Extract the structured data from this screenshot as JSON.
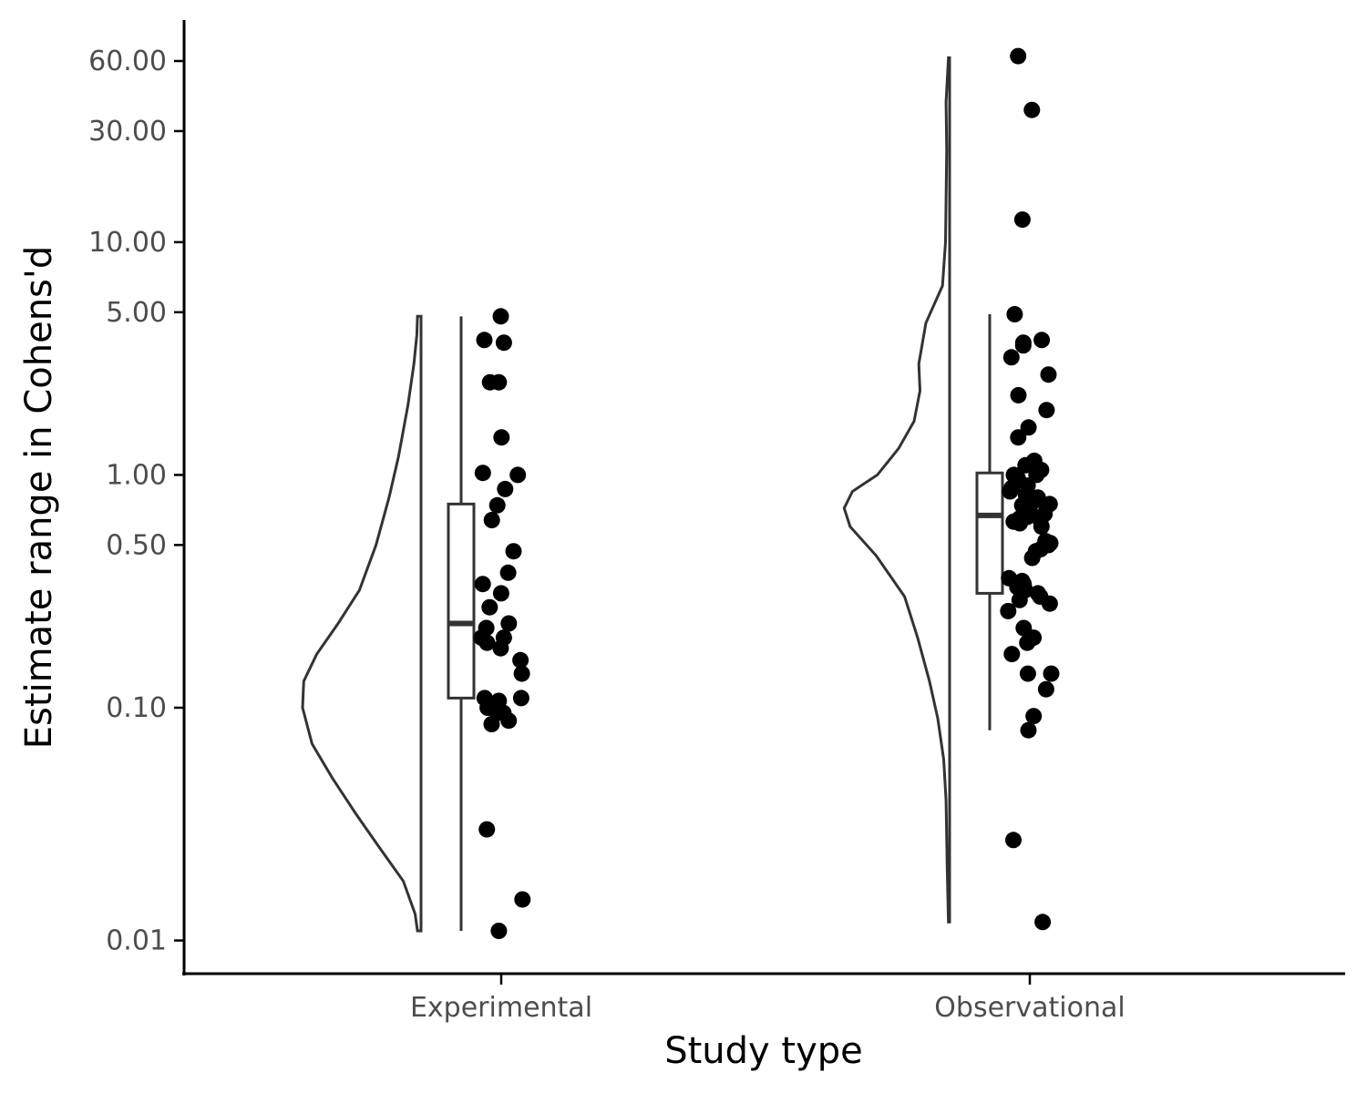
{
  "chart_data": {
    "type": "raincloud",
    "xlabel": "Study type",
    "ylabel": "Estimate range in Cohens'd",
    "y_scale": "log10",
    "ylim": [
      0.0072,
      90
    ],
    "y_ticks": [
      {
        "value": 0.01,
        "label": "0.01"
      },
      {
        "value": 0.1,
        "label": "0.10"
      },
      {
        "value": 0.5,
        "label": "0.50"
      },
      {
        "value": 1,
        "label": "1.00"
      },
      {
        "value": 5,
        "label": "5.00"
      },
      {
        "value": 10,
        "label": "10.00"
      },
      {
        "value": 30,
        "label": "30.00"
      },
      {
        "value": 60,
        "label": "60.00"
      }
    ],
    "grid": false,
    "categories": [
      "Experimental",
      "Observational"
    ],
    "groups": [
      {
        "name": "Experimental",
        "box": {
          "min": 0.011,
          "q1": 0.11,
          "median": 0.23,
          "q3": 0.75,
          "max": 4.8
        },
        "density": [
          [
            0.011,
            0.03
          ],
          [
            0.013,
            0.05
          ],
          [
            0.018,
            0.15
          ],
          [
            0.025,
            0.35
          ],
          [
            0.035,
            0.55
          ],
          [
            0.05,
            0.75
          ],
          [
            0.07,
            0.92
          ],
          [
            0.1,
            1.0
          ],
          [
            0.13,
            0.99
          ],
          [
            0.17,
            0.88
          ],
          [
            0.23,
            0.7
          ],
          [
            0.32,
            0.52
          ],
          [
            0.5,
            0.38
          ],
          [
            0.8,
            0.27
          ],
          [
            1.2,
            0.19
          ],
          [
            2.0,
            0.11
          ],
          [
            3.0,
            0.06
          ],
          [
            4.0,
            0.035
          ],
          [
            4.8,
            0.03
          ]
        ],
        "points": [
          4.8,
          3.7,
          3.8,
          2.5,
          2.5,
          1.45,
          1.02,
          1.0,
          0.87,
          0.74,
          0.64,
          0.47,
          0.38,
          0.34,
          0.31,
          0.27,
          0.23,
          0.22,
          0.2,
          0.18,
          0.19,
          0.2,
          0.16,
          0.14,
          0.11,
          0.107,
          0.11,
          0.1,
          0.095,
          0.095,
          0.088,
          0.085,
          0.03,
          0.015,
          0.011
        ]
      },
      {
        "name": "Observational",
        "box": {
          "min": 0.08,
          "q1": 0.31,
          "median": 0.67,
          "q3": 1.02,
          "max": 4.9
        },
        "density": [
          [
            0.012,
            0.01
          ],
          [
            0.02,
            0.02
          ],
          [
            0.04,
            0.03
          ],
          [
            0.06,
            0.05
          ],
          [
            0.09,
            0.1
          ],
          [
            0.13,
            0.17
          ],
          [
            0.2,
            0.27
          ],
          [
            0.3,
            0.38
          ],
          [
            0.45,
            0.62
          ],
          [
            0.6,
            0.84
          ],
          [
            0.72,
            0.89
          ],
          [
            0.85,
            0.82
          ],
          [
            1.0,
            0.61
          ],
          [
            1.3,
            0.43
          ],
          [
            1.7,
            0.3
          ],
          [
            2.3,
            0.25
          ],
          [
            3.0,
            0.26
          ],
          [
            4.5,
            0.2
          ],
          [
            6.5,
            0.06
          ],
          [
            10,
            0.035
          ],
          [
            15,
            0.03
          ],
          [
            25,
            0.025
          ],
          [
            40,
            0.03
          ],
          [
            62,
            0.01
          ]
        ],
        "points": [
          63,
          37,
          12.5,
          4.9,
          3.8,
          3.7,
          3.6,
          3.2,
          2.7,
          2.2,
          1.9,
          1.6,
          1.45,
          1.15,
          1.1,
          1.05,
          1.0,
          1.0,
          0.97,
          0.9,
          0.88,
          0.85,
          0.82,
          0.8,
          0.78,
          0.75,
          0.74,
          0.72,
          0.7,
          0.69,
          0.68,
          0.67,
          0.66,
          0.65,
          0.64,
          0.64,
          0.63,
          0.62,
          0.6,
          0.52,
          0.51,
          0.5,
          0.5,
          0.48,
          0.47,
          0.44,
          0.36,
          0.35,
          0.34,
          0.33,
          0.32,
          0.31,
          0.3,
          0.29,
          0.28,
          0.26,
          0.22,
          0.2,
          0.19,
          0.17,
          0.14,
          0.14,
          0.12,
          0.092,
          0.08,
          0.027,
          0.012
        ]
      }
    ]
  }
}
